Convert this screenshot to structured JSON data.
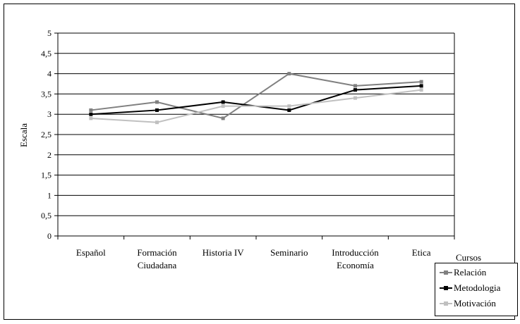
{
  "chart_data": {
    "type": "line",
    "categories": [
      [
        "Español"
      ],
      [
        "Formación",
        "Ciudadana"
      ],
      [
        "Historia IV"
      ],
      [
        "Seminario"
      ],
      [
        "Introducción",
        "Economía"
      ],
      [
        "Etica"
      ]
    ],
    "series": [
      {
        "name": "Relación",
        "color": "#808080",
        "values": [
          3.1,
          3.3,
          2.9,
          4.0,
          3.7,
          3.8
        ]
      },
      {
        "name": "Metodologia",
        "color": "#000000",
        "values": [
          3.0,
          3.1,
          3.3,
          3.1,
          3.6,
          3.7
        ]
      },
      {
        "name": "Motivación",
        "color": "#c0c0c0",
        "values": [
          2.9,
          2.8,
          3.2,
          3.2,
          3.4,
          3.6
        ]
      }
    ],
    "ylabel": "Escala",
    "legend_title": "Cursos",
    "ylim": [
      0,
      5
    ],
    "yticks": [
      "0",
      "0,5",
      "1",
      "1,5",
      "2",
      "2,5",
      "3",
      "3,5",
      "4",
      "4,5",
      "5"
    ],
    "ytick_values": [
      0,
      0.5,
      1,
      1.5,
      2,
      2.5,
      3,
      3.5,
      4,
      4.5,
      5
    ],
    "grid": true,
    "legend_position": "bottom-right"
  }
}
